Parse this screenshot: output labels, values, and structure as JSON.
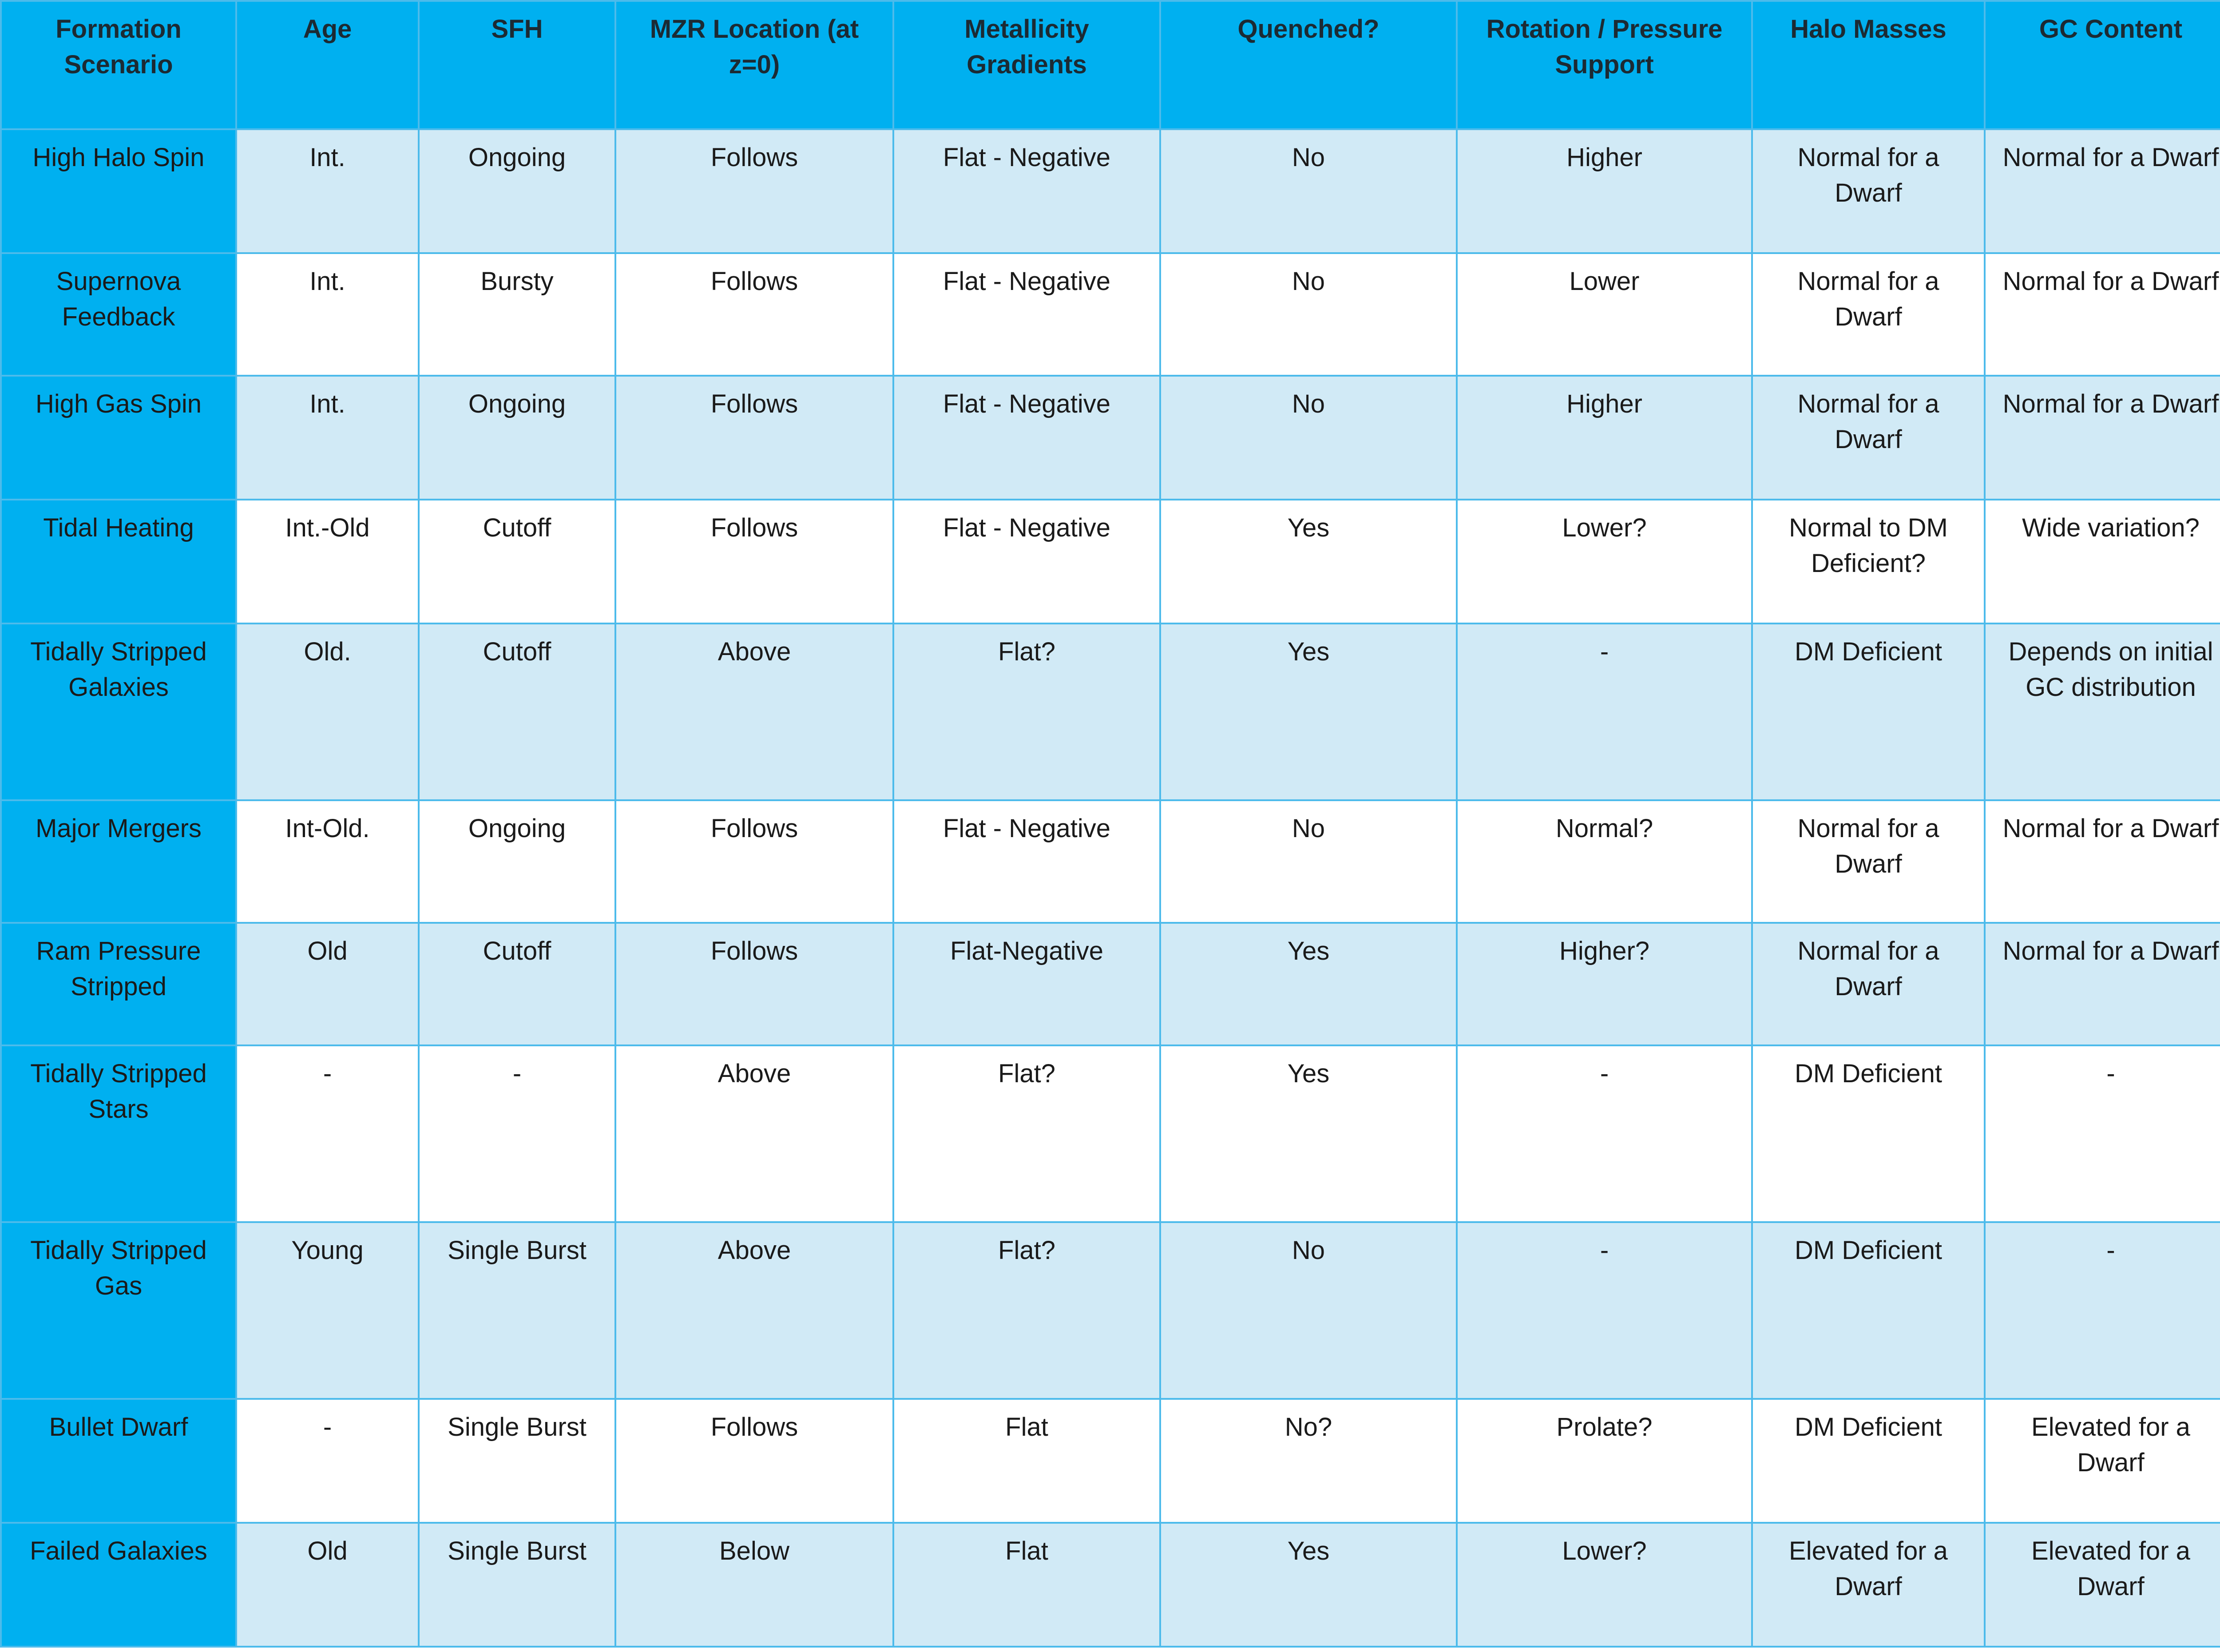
{
  "table": {
    "header": [
      "Formation Scenario",
      "Age",
      "SFH",
      "MZR Location (at z=0)",
      "Metallicity Gradients",
      "Quenched?",
      "Rotation / Pressure Support",
      "Halo Masses",
      "GC Content"
    ],
    "rows": [
      [
        "High Halo Spin",
        "Int.",
        "Ongoing",
        "Follows",
        "Flat - Negative",
        "No",
        "Higher",
        "Normal for a Dwarf",
        "Normal for a Dwarf"
      ],
      [
        "Supernova Feedback",
        "Int.",
        "Bursty",
        "Follows",
        "Flat - Negative",
        "No",
        "Lower",
        "Normal for a Dwarf",
        "Normal for a Dwarf"
      ],
      [
        "High Gas Spin",
        "Int.",
        "Ongoing",
        "Follows",
        "Flat - Negative",
        "No",
        "Higher",
        "Normal for a Dwarf",
        "Normal for a Dwarf"
      ],
      [
        "Tidal Heating",
        "Int.-Old",
        "Cutoff",
        "Follows",
        "Flat - Negative",
        "Yes",
        "Lower?",
        "Normal to DM Deficient?",
        "Wide variation?"
      ],
      [
        "Tidally Stripped Galaxies",
        "Old.",
        "Cutoff",
        "Above",
        "Flat?",
        "Yes",
        "-",
        "DM Deficient",
        "Depends on initial GC distribution"
      ],
      [
        "Major Mergers",
        "Int-Old.",
        "Ongoing",
        "Follows",
        "Flat - Negative",
        "No",
        "Normal?",
        "Normal for a Dwarf",
        "Normal for a Dwarf"
      ],
      [
        "Ram Pressure Stripped",
        "Old",
        "Cutoff",
        "Follows",
        "Flat-Negative",
        "Yes",
        "Higher?",
        "Normal for a Dwarf",
        "Normal for a Dwarf"
      ],
      [
        "Tidally Stripped Stars",
        "-",
        "-",
        "Above",
        "Flat?",
        "Yes",
        "-",
        "DM Deficient",
        "-"
      ],
      [
        "Tidally Stripped Gas",
        "Young",
        "Single Burst",
        "Above",
        "Flat?",
        "No",
        "-",
        "DM Deficient",
        "-"
      ],
      [
        "Bullet Dwarf",
        "-",
        "Single Burst",
        "Follows",
        "Flat",
        "No?",
        "Prolate?",
        "DM Deficient",
        "Elevated for a Dwarf"
      ],
      [
        "Failed Galaxies",
        "Old",
        "Single Burst",
        "Below",
        "Flat",
        "Yes",
        "Lower?",
        "Elevated for a Dwarf",
        "Elevated for a Dwarf"
      ]
    ]
  }
}
